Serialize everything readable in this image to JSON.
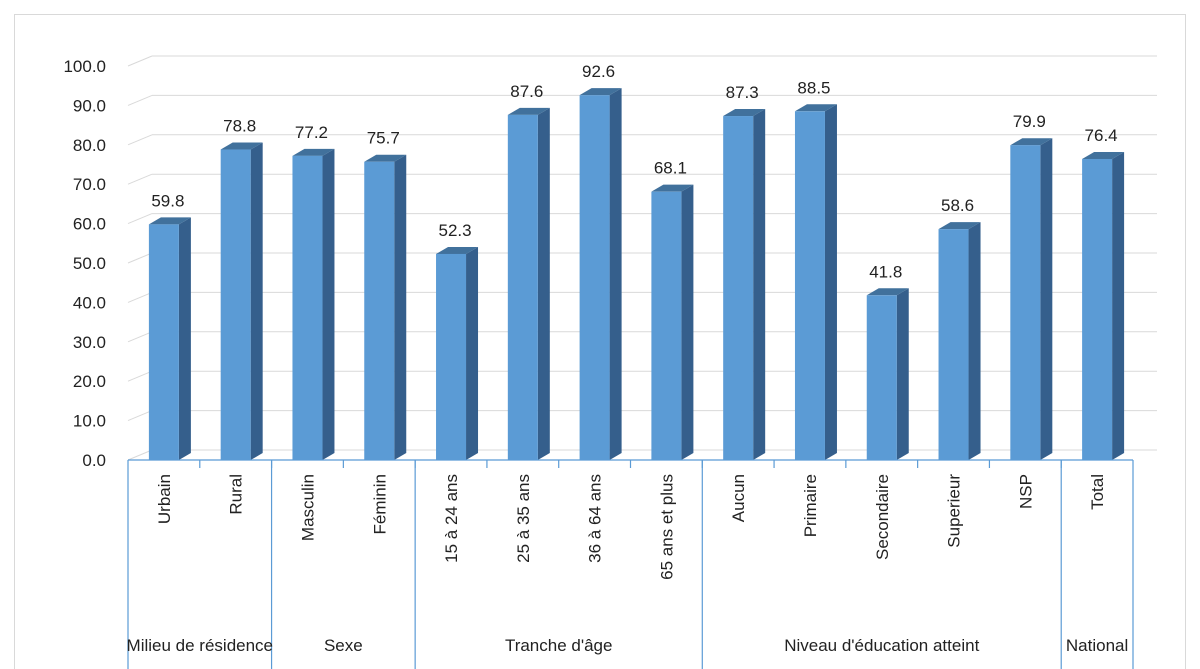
{
  "chart_data": {
    "type": "bar",
    "title": "",
    "xlabel": "",
    "ylabel": "",
    "ylim": [
      0,
      100
    ],
    "yticks": [
      "0.0",
      "10.0",
      "20.0",
      "30.0",
      "40.0",
      "50.0",
      "60.0",
      "70.0",
      "80.0",
      "90.0",
      "100.0"
    ],
    "categories": [
      "Urbain",
      "Rural",
      "Masculin",
      "Féminin",
      "15 à 24 ans",
      "25 à 35 ans",
      "36 à 64 ans",
      "65 ans et plus",
      "Aucun",
      "Primaire",
      "Secondaire",
      "Superieur",
      "NSP",
      "Total"
    ],
    "values": [
      59.8,
      78.8,
      77.2,
      75.7,
      52.3,
      87.6,
      92.6,
      68.1,
      87.3,
      88.5,
      41.8,
      58.6,
      79.9,
      76.4
    ],
    "value_labels": [
      "59.8",
      "78.8",
      "77.2",
      "75.7",
      "52.3",
      "87.6",
      "92.6",
      "68.1",
      "87.3",
      "88.5",
      "41.8",
      "58.6",
      "79.9",
      "76.4"
    ],
    "groups": [
      {
        "label": "Milieu de résidence",
        "count": 2
      },
      {
        "label": "Sexe",
        "count": 2
      },
      {
        "label": "Tranche d'âge",
        "count": 4
      },
      {
        "label": "Niveau d'éducation atteint",
        "count": 5
      },
      {
        "label": "National",
        "count": 1
      }
    ],
    "bar_color": "#5B9BD5",
    "grid": true
  }
}
